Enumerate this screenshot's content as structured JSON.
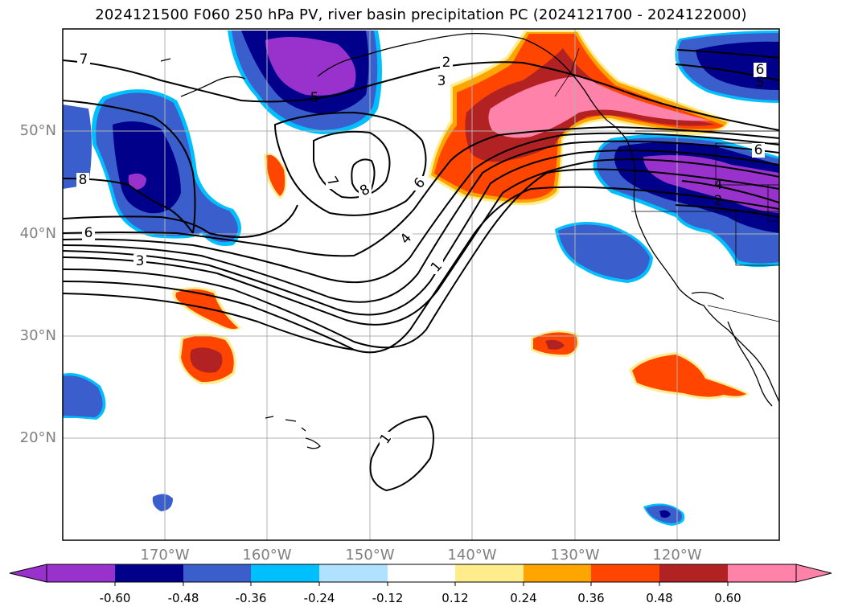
{
  "title": "2024121500 F060 250 hPa PV, river basin precipitation PC (2024121700 - 2024122000)",
  "map": {
    "lat_labels": [
      "50°N",
      "40°N",
      "30°N",
      "20°N"
    ],
    "lon_labels": [
      "170°W",
      "160°W",
      "150°W",
      "140°W",
      "130°W",
      "120°W"
    ],
    "lat_values": [
      50,
      40,
      30,
      20
    ],
    "lon_values": [
      -170,
      -160,
      -150,
      -140,
      -130,
      -120
    ],
    "lat_range": [
      10,
      60
    ],
    "lon_range": [
      -180,
      -110
    ],
    "grid": true,
    "contour_labels": [
      {
        "text": "7"
      },
      {
        "text": "2"
      },
      {
        "text": "3"
      },
      {
        "text": "5"
      },
      {
        "text": "8"
      },
      {
        "text": "6"
      },
      {
        "text": "7"
      },
      {
        "text": "8"
      },
      {
        "text": "6"
      },
      {
        "text": "4"
      },
      {
        "text": "1"
      },
      {
        "text": "3"
      },
      {
        "text": "6"
      },
      {
        "text": "6"
      },
      {
        "text": "5"
      },
      {
        "text": "4"
      },
      {
        "text": "2"
      },
      {
        "text": "1"
      }
    ]
  },
  "colorbar": {
    "levels": [
      "-0.60",
      "-0.48",
      "-0.36",
      "-0.24",
      "-0.12",
      "0.12",
      "0.24",
      "0.36",
      "0.48",
      "0.60"
    ],
    "colors": [
      "#9932cc",
      "#00008b",
      "#3a5fcd",
      "#00bfff",
      "#b0e2ff",
      "#ffffff",
      "#ffec8b",
      "#ffa500",
      "#ff4500",
      "#b22222",
      "#ff82ab"
    ],
    "extend": "both"
  },
  "colors": {
    "neg_extreme": "#9932cc",
    "neg_strong": "#00008b",
    "neg_mid": "#3a5fcd",
    "neg_light": "#00bfff",
    "neg_pale": "#b0e2ff",
    "pos_pale": "#ffec8b",
    "pos_light": "#ffa500",
    "pos_mid": "#ff4500",
    "pos_strong": "#b22222",
    "pos_extreme": "#ff82ab"
  }
}
